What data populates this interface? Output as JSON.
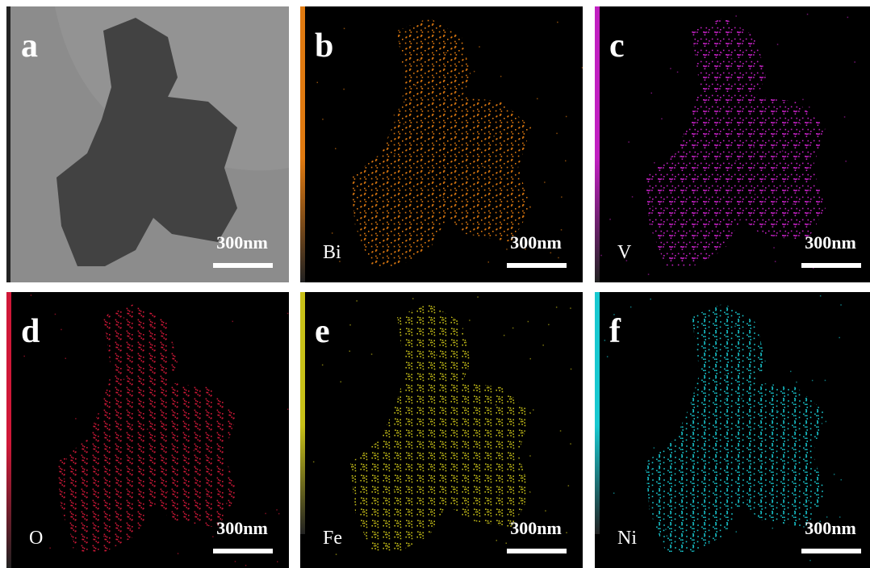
{
  "panels": [
    {
      "letter": "a",
      "scale_bar": "300nm"
    },
    {
      "letter": "b",
      "element": "Bi",
      "scale_bar": "300nm"
    },
    {
      "letter": "c",
      "element": "V",
      "scale_bar": "300nm"
    },
    {
      "letter": "d",
      "element": "O",
      "scale_bar": "300nm"
    },
    {
      "letter": "e",
      "element": "Fe",
      "scale_bar": "300nm"
    },
    {
      "letter": "f",
      "element": "Ni",
      "scale_bar": "300nm"
    }
  ]
}
